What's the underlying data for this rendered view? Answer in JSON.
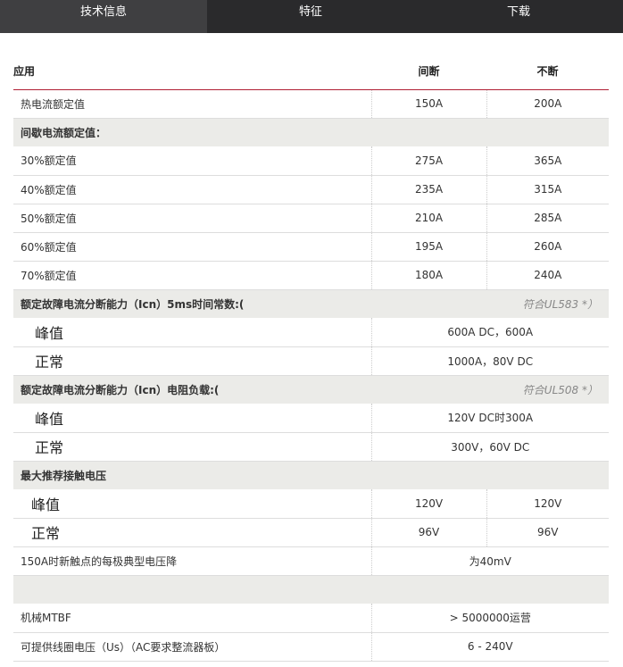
{
  "tabs": [
    "技术信息",
    "特征",
    "下载"
  ],
  "header": {
    "app": "应用",
    "col_a": "间断",
    "col_b": "不断"
  },
  "rows": {
    "thermal": {
      "label": "热电流额定值",
      "a": "150A",
      "b": "200A"
    },
    "intermittent": "间歇电流额定值：",
    "r30": {
      "label": "30%额定值",
      "a": "275A",
      "b": "365A"
    },
    "r40": {
      "label": "40%额定值",
      "a": "235A",
      "b": "315A"
    },
    "r50": {
      "label": "50%额定值",
      "a": "210A",
      "b": "285A"
    },
    "r60": {
      "label": "60%额定值",
      "a": "195A",
      "b": "260A"
    },
    "r70": {
      "label": "70%额定值",
      "a": "180A",
      "b": "240A"
    },
    "icn5ms": {
      "label": "额定故障电流分断能力（Icn）5ms时间常数:(",
      "note": "符合UL583 *）"
    },
    "icn5ms_peak": {
      "label": "峰值",
      "value": "600A DC，600A"
    },
    "icn5ms_normal": {
      "label": "正常",
      "value": "1000A，80V DC"
    },
    "icnres": {
      "label": "额定故障电流分断能力（Icn）电阻负载:(",
      "note": "符合UL508 *）"
    },
    "icnres_peak": {
      "label": "峰值",
      "value": "120V DC时300A"
    },
    "icnres_normal": {
      "label": "正常",
      "value": "300V，60V DC"
    },
    "maxv": "最大推荐接触电压",
    "maxv_peak": {
      "label": "峰值",
      "a": "120V",
      "b": "120V"
    },
    "maxv_normal": {
      "label": "正常",
      "a": "96V",
      "b": "96V"
    },
    "drop": {
      "label": "150A时新触点的每极典型电压降",
      "value": "为40mV"
    },
    "mtbf": {
      "label": "机械MTBF",
      "value": "> 5000000运营"
    },
    "coil": {
      "label": "可提供线圈电压（Us）（AC要求整流器板）",
      "value": "6 - 240V"
    }
  }
}
